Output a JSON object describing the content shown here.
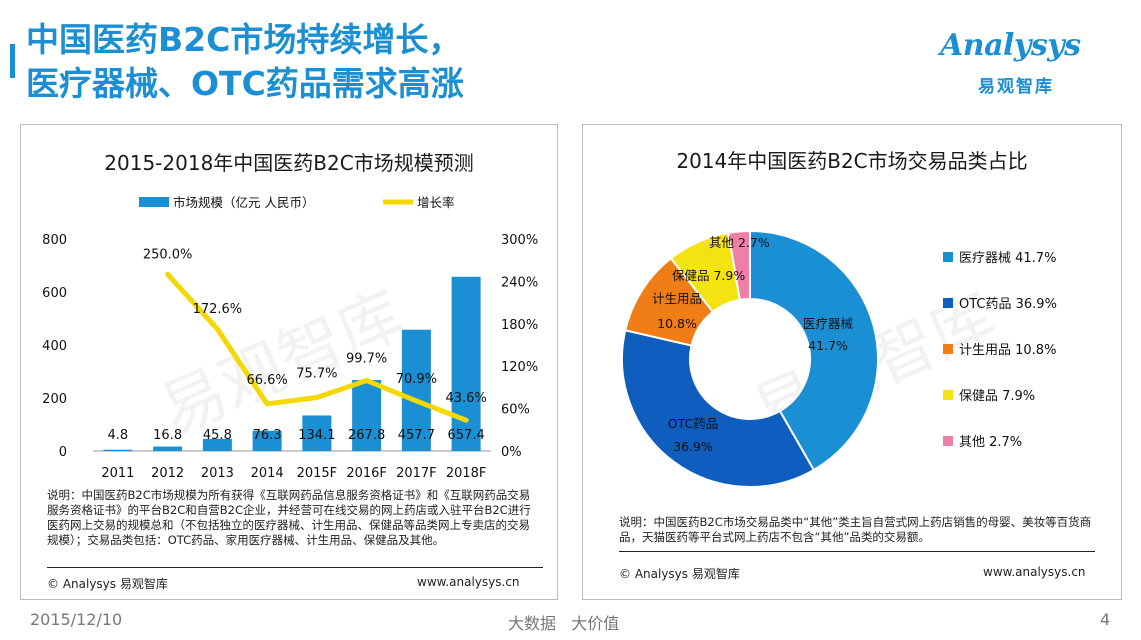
{
  "page": {
    "title_line1": "中国医药B2C市场持续增长，",
    "title_line2": "医疗器械、OTC药品需求高涨",
    "logo_text": "Analysys",
    "logo_cn": "易观智库",
    "date": "2015/12/10",
    "slogan": "大数据   大价值",
    "page_number": "4"
  },
  "left_panel": {
    "note": "说明：中国医药B2C市场规模为所有获得《互联网药品信息服务资格证书》和《互联网药品交易服务资格证书》的平台B2C和自营B2C企业，并经营可在线交易的网上药店或入驻平台B2C进行医药网上交易的规模总和（不包括独立的医疗器械、计生用品、保健品等品类网上专卖店的交易规模）；交易品类包括：OTC药品、家用医疗器械、计生用品、保健品及其他。",
    "copyright": "© Analysys 易观智库",
    "website": "www.analysys.cn"
  },
  "right_panel": {
    "note": "说明：中国医药B2C市场交易品类中“其他”类主旨自营式网上药店销售的母婴、美妆等百货商品，天猫医药等平台式网上药店不包含“其他”品类的交易额。",
    "copyright": "© Analysys 易观智库",
    "website": "www.analysys.cn"
  },
  "chart_data": [
    {
      "type": "bar",
      "title": "2015-2018年中国医药B2C市场规模预测",
      "categories": [
        "2011",
        "2012",
        "2013",
        "2014",
        "2015F",
        "2016F",
        "2017F",
        "2018F"
      ],
      "series": [
        {
          "name": "市场规模（亿元 人民币）",
          "type": "bar",
          "axis": "left",
          "color": "#1b8fd3",
          "values": [
            4.8,
            16.8,
            45.8,
            76.3,
            134.1,
            267.8,
            457.7,
            657.4
          ],
          "labels": [
            "4.8",
            "16.8",
            "45.8",
            "76.3",
            "134.1",
            "267.8",
            "457.7",
            "657.4"
          ]
        },
        {
          "name": "增长率",
          "type": "line",
          "axis": "right",
          "color": "#f5d800",
          "values": [
            null,
            250.0,
            172.6,
            66.6,
            75.7,
            99.7,
            70.9,
            43.6
          ],
          "labels": [
            "",
            "250.0%",
            "172.6%",
            "66.6%",
            "75.7%",
            "99.7%",
            "70.9%",
            "43.6%"
          ]
        }
      ],
      "y_left": {
        "min": 0,
        "max": 800,
        "ticks": [
          "0",
          "200",
          "400",
          "600",
          "800"
        ],
        "tick_values": [
          0,
          200,
          400,
          600,
          800
        ]
      },
      "y_right": {
        "min": 0,
        "max": 300,
        "ticks": [
          "0%",
          "60%",
          "120%",
          "180%",
          "240%",
          "300%"
        ],
        "tick_values": [
          0,
          60,
          120,
          180,
          240,
          300
        ]
      },
      "legend": "top",
      "watermark": "易观智库"
    },
    {
      "type": "pie",
      "title": "2014年中国医药B2C市场交易品类占比",
      "slices": [
        {
          "name": "医疗器械",
          "value": 41.7,
          "color": "#1b8fd3",
          "legend": "医疗器械 41.7%"
        },
        {
          "name": "OTC药品",
          "value": 36.9,
          "color": "#0f5dbf",
          "legend": "OTC药品 36.9%"
        },
        {
          "name": "计生用品",
          "value": 10.8,
          "color": "#f07d16",
          "legend": "计生用品 10.8%"
        },
        {
          "name": "保健品",
          "value": 7.9,
          "color": "#f5e211",
          "legend": "保健品 7.9%"
        },
        {
          "name": "其他",
          "value": 2.7,
          "color": "#f07fa8",
          "legend": "其他 2.7%"
        }
      ],
      "slice_labels": {
        "yiliao_name": "医疗器械",
        "yiliao_pct": "41.7%",
        "otc_name": "OTC药品",
        "otc_pct": "36.9%",
        "jisheng_name": "计生用品",
        "jisheng_pct": "10.8%",
        "baojian": "保健品 7.9%",
        "qita": "其他 2.7%"
      },
      "donut": true,
      "legend": "right",
      "watermark": "易观智库"
    }
  ]
}
